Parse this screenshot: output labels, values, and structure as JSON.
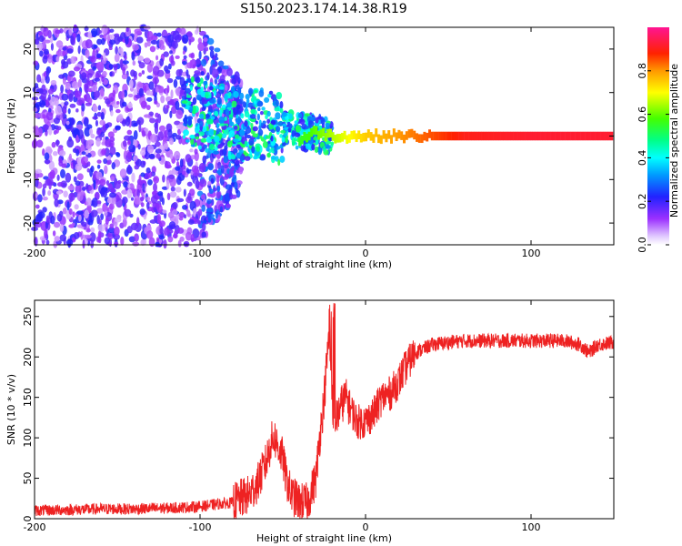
{
  "figure": {
    "title": "S150.2023.174.14.38.R19"
  },
  "chart_data": [
    {
      "type": "heatmap",
      "xlabel": "Height of straight line (km)",
      "ylabel": "Frequency (Hz)",
      "xlim": [
        -200,
        150
      ],
      "ylim": [
        -25,
        25
      ],
      "x_ticks": [
        -200,
        -100,
        0,
        100
      ],
      "y_ticks": [
        -20,
        -10,
        0,
        10,
        20
      ],
      "grid": false,
      "colorbar": {
        "label": "Normalized spectral amplitude",
        "range": [
          0.0,
          1.0
        ],
        "ticks": [
          "0.0",
          "0.2",
          "0.4",
          "0.6",
          "0.8"
        ],
        "colormap": "gist_rainbow_r"
      },
      "description_points": {
        "x_km": [
          -200,
          -100,
          -80,
          -60,
          -50,
          -40,
          -30,
          -20,
          -10,
          0,
          20,
          40,
          60,
          100,
          150
        ],
        "centroid_freq_hz": [
          0,
          8,
          5,
          3,
          -2,
          -1,
          1,
          0,
          0,
          0,
          0,
          0,
          0,
          0,
          0
        ],
        "peak_amplitude": [
          0.15,
          0.3,
          0.35,
          0.45,
          0.5,
          0.55,
          0.6,
          0.65,
          0.7,
          0.75,
          0.8,
          0.85,
          0.9,
          0.92,
          0.92
        ]
      }
    },
    {
      "type": "line",
      "xlabel": "Height of straight line (km)",
      "ylabel": "SNR (10 * v/v)",
      "xlim": [
        -200,
        150
      ],
      "ylim": [
        0,
        270
      ],
      "x_ticks": [
        -200,
        -100,
        0,
        100
      ],
      "y_ticks": [
        0,
        50,
        100,
        150,
        200,
        250
      ],
      "grid": false,
      "series": [
        {
          "color": "#ee2222",
          "x": [
            -200,
            -180,
            -160,
            -140,
            -120,
            -100,
            -90,
            -80,
            -75,
            -70,
            -65,
            -60,
            -57,
            -55,
            -52,
            -50,
            -48,
            -45,
            -40,
            -35,
            -30,
            -28,
            -25,
            -22,
            -20,
            -18,
            -15,
            -12,
            -10,
            -5,
            0,
            5,
            10,
            15,
            20,
            25,
            30,
            40,
            50,
            60,
            80,
            100,
            120,
            130,
            135,
            140,
            150
          ],
          "y": [
            10,
            11,
            12,
            12,
            13,
            15,
            18,
            20,
            25,
            30,
            45,
            70,
            95,
            100,
            85,
            75,
            50,
            30,
            20,
            20,
            50,
            95,
            150,
            230,
            140,
            120,
            140,
            150,
            140,
            120,
            120,
            130,
            150,
            155,
            170,
            190,
            205,
            215,
            218,
            220,
            220,
            220,
            220,
            215,
            205,
            215,
            218
          ]
        }
      ]
    }
  ]
}
